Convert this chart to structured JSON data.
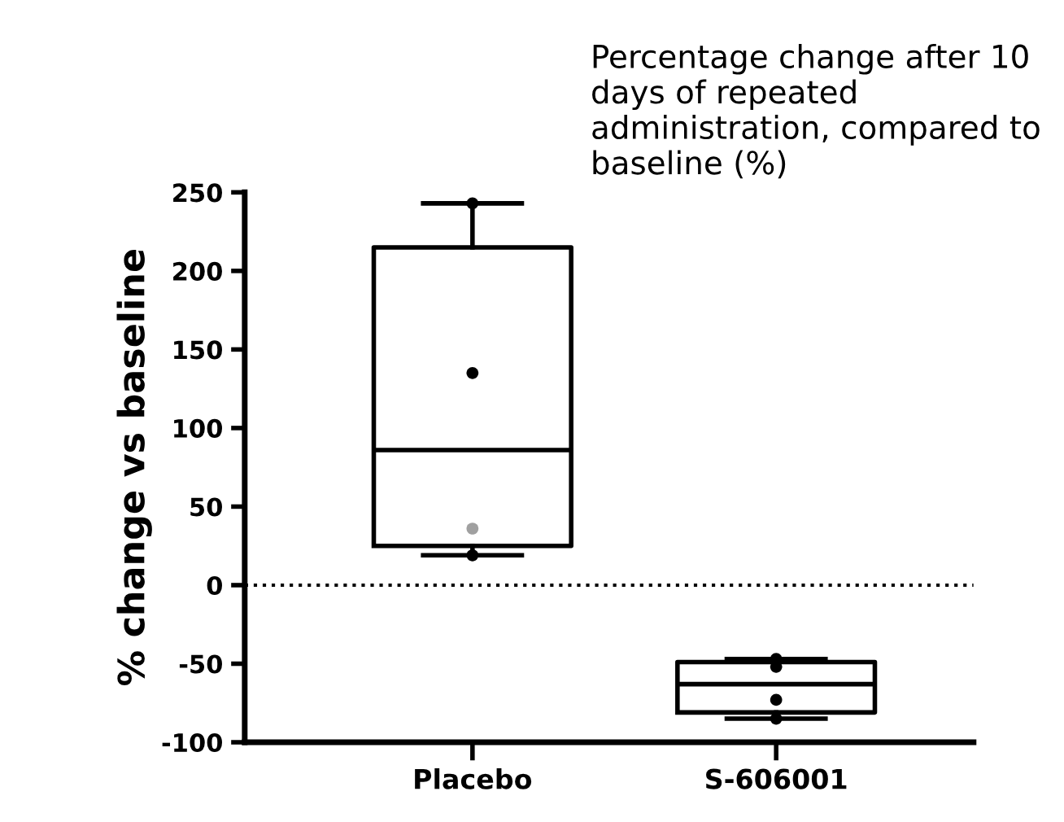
{
  "chart_data": {
    "type": "box",
    "title": "Percentage change after 10 days of repeated administration, compared to baseline (%)",
    "ylabel": "% change vs baseline",
    "categories": [
      "Placebo",
      "S-606001"
    ],
    "boxes": [
      {
        "low": 19,
        "q1": 25,
        "median": 86,
        "q3": 215,
        "high": 243
      },
      {
        "low": -85,
        "q1": -81,
        "median": -63,
        "q3": -49,
        "high": -47
      }
    ],
    "series": [
      {
        "type": "scatter",
        "x": [
          "Placebo",
          "Placebo",
          "Placebo",
          "Placebo",
          "S-606001",
          "S-606001",
          "S-606001",
          "S-606001"
        ],
        "values": [
          243,
          135,
          36,
          19,
          -52,
          -47,
          -73,
          -85
        ],
        "colors": [
          "#000000",
          "#000000",
          "#a0a0a0",
          "#000000",
          "#000000",
          "#000000",
          "#000000",
          "#000000"
        ]
      }
    ],
    "ylim": [
      -100,
      250
    ],
    "yticks": [
      -100,
      -50,
      0,
      50,
      100,
      150,
      200,
      250
    ],
    "ref_lines": [
      {
        "axis": "y",
        "value": 0,
        "line_style": "dotted",
        "color": "#000000"
      }
    ],
    "grid": false,
    "legend": false,
    "marker": "circle"
  }
}
